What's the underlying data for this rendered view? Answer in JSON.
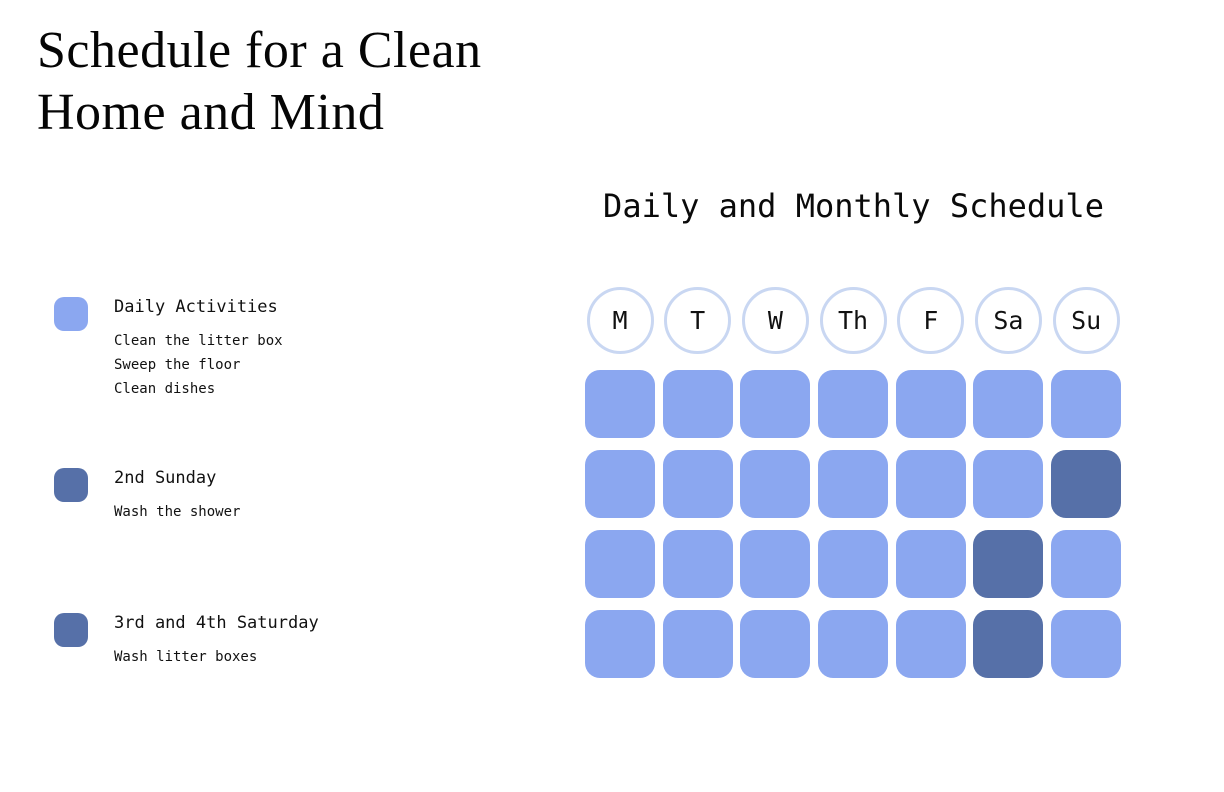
{
  "title": {
    "line1": "Schedule for a Clean",
    "line2": "Home and Mind"
  },
  "schedule": {
    "title": "Daily and Monthly Schedule",
    "day_headers": [
      "M",
      "T",
      "W",
      "Th",
      "F",
      "Sa",
      "Su"
    ],
    "weeks": [
      [
        "daily",
        "daily",
        "daily",
        "daily",
        "daily",
        "daily",
        "daily"
      ],
      [
        "daily",
        "daily",
        "daily",
        "daily",
        "daily",
        "daily",
        "sunday2"
      ],
      [
        "daily",
        "daily",
        "daily",
        "daily",
        "daily",
        "saturday34",
        "daily"
      ],
      [
        "daily",
        "daily",
        "daily",
        "daily",
        "daily",
        "saturday34",
        "daily"
      ]
    ],
    "cell_colors": {
      "daily": "#8BA7F0",
      "sunday2": "#5670A8",
      "saturday34": "#5670A8"
    }
  },
  "legend": [
    {
      "color": "#8BA7F0",
      "title": "Daily Activities",
      "items": [
        "Clean the litter box",
        "Sweep the floor",
        "Clean dishes"
      ]
    },
    {
      "color": "#5670A8",
      "title": "2nd Sunday",
      "items": [
        "Wash the shower"
      ]
    },
    {
      "color": "#5670A8",
      "title": "3rd and 4th Saturday",
      "items": [
        "Wash litter boxes"
      ]
    }
  ],
  "colors": {
    "daily_cell": "#8BA7F0",
    "special_cell": "#5670A8",
    "circle_border": "#C9D7F2",
    "background": "#FFFFFF",
    "text": "#111111"
  }
}
